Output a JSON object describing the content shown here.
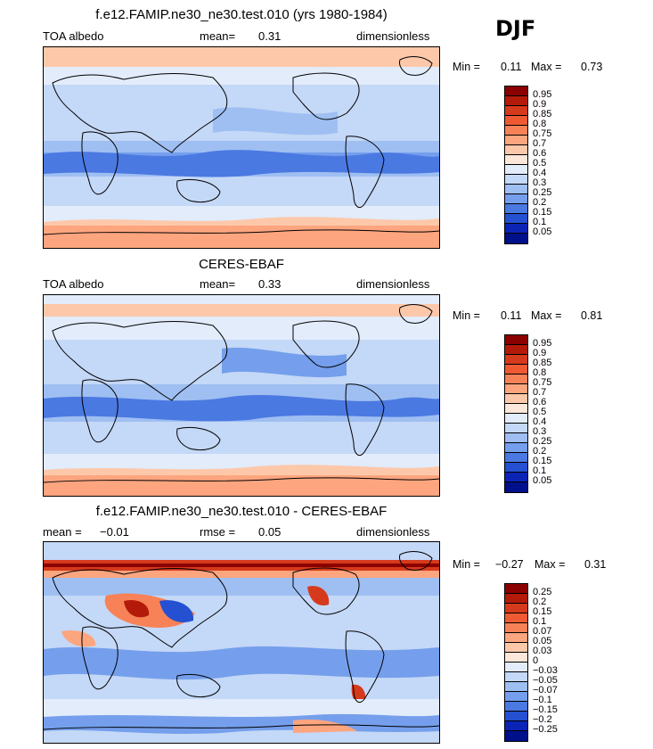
{
  "season": "DJF",
  "panels": [
    {
      "id": "model",
      "title": "f.e12.FAMIP.ne30_ne30.test.010 (yrs 1980-1984)",
      "left_label": "TOA albedo",
      "stat_label": "mean=",
      "stat_value": "0.31",
      "stat2_label": "",
      "stat2_value": "",
      "units": "dimensionless",
      "min_label": "Min =",
      "min_value": "0.11",
      "max_label": "Max =",
      "max_value": "0.73",
      "colorbar": {
        "labels": [
          "0.95",
          "0.9",
          "0.85",
          "0.8",
          "0.75",
          "0.7",
          "0.6",
          "0.5",
          "0.4",
          "0.3",
          "0.25",
          "0.2",
          "0.15",
          "0.1",
          "0.05"
        ],
        "colors": [
          "#8b0000",
          "#b41a0a",
          "#d63a1c",
          "#ef5a33",
          "#f88257",
          "#fca57f",
          "#fdc8aa",
          "#fde6da",
          "#e2ecfb",
          "#c4d8f7",
          "#9fbff2",
          "#759fec",
          "#4b79e2",
          "#2450d1",
          "#0c24b6",
          "#00108a"
        ]
      }
    },
    {
      "id": "obs",
      "title": "CERES-EBAF",
      "left_label": "TOA albedo",
      "stat_label": "mean=",
      "stat_value": "0.33",
      "stat2_label": "",
      "stat2_value": "",
      "units": "dimensionless",
      "min_label": "Min =",
      "min_value": "0.11",
      "max_label": "Max =",
      "max_value": "0.81",
      "colorbar": {
        "labels": [
          "0.95",
          "0.9",
          "0.85",
          "0.8",
          "0.75",
          "0.7",
          "0.6",
          "0.5",
          "0.4",
          "0.3",
          "0.25",
          "0.2",
          "0.15",
          "0.1",
          "0.05"
        ],
        "colors": [
          "#8b0000",
          "#b41a0a",
          "#d63a1c",
          "#ef5a33",
          "#f88257",
          "#fca57f",
          "#fdc8aa",
          "#fde6da",
          "#e2ecfb",
          "#c4d8f7",
          "#9fbff2",
          "#759fec",
          "#4b79e2",
          "#2450d1",
          "#0c24b6",
          "#00108a"
        ]
      }
    },
    {
      "id": "diff",
      "title": "f.e12.FAMIP.ne30_ne30.test.010 - CERES-EBAF",
      "left_label": "mean =",
      "stat_label": "",
      "stat_value": "−0.01",
      "stat2_label": "rmse =",
      "stat2_value": "0.05",
      "units": "dimensionless",
      "min_label": "Min =",
      "min_value": "−0.27",
      "max_label": "Max =",
      "max_value": "0.31",
      "colorbar": {
        "labels": [
          "0.25",
          "0.2",
          "0.15",
          "0.1",
          "0.07",
          "0.05",
          "0.03",
          "0",
          "−0.03",
          "−0.05",
          "−0.07",
          "−0.1",
          "−0.15",
          "−0.2",
          "−0.25"
        ],
        "colors": [
          "#8b0000",
          "#b41a0a",
          "#d63a1c",
          "#ef5a33",
          "#f88257",
          "#fca57f",
          "#fdc8aa",
          "#fde6da",
          "#e2ecfb",
          "#c4d8f7",
          "#9fbff2",
          "#759fec",
          "#4b79e2",
          "#2450d1",
          "#0c24b6",
          "#00108a"
        ]
      }
    }
  ]
}
